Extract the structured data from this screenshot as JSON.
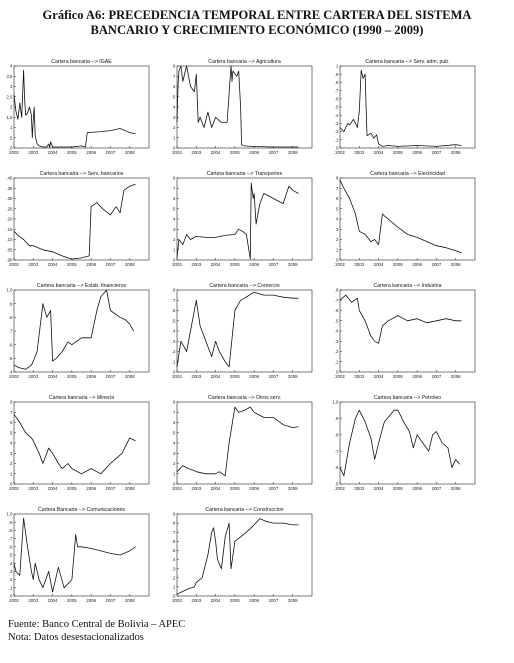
{
  "title": {
    "line1": "Gráfico A6: PRECEDENCIA TEMPORAL ENTRE  CARTERA DEL SISTEMA",
    "line2": "BANCARIO Y CRECIMIENTO ECONÓMICO (1990 – 2009)"
  },
  "footer": {
    "source": "Fuente: Banco Central de Bolivia – APEC",
    "note": "Nota: Datos desestacionalizados"
  },
  "chart_data": [
    {
      "type": "line",
      "title": "Cartera bancaria --> IGAE",
      "xlim": [
        2002,
        2009
      ],
      "x_ticks": [
        "2002",
        "2003",
        "2004",
        "2005",
        "2006",
        "2007",
        "2008"
      ],
      "ylim": [
        0,
        4
      ],
      "y_ticks": [
        ".0",
        ".5",
        "1",
        "1.5",
        "2",
        "2.5",
        "3",
        "3.5",
        "4"
      ],
      "x": [
        2002.0,
        2002.1,
        2002.2,
        2002.3,
        2002.4,
        2002.5,
        2002.55,
        2002.6,
        2002.7,
        2002.8,
        2002.9,
        2002.95,
        2003.0,
        2003.05,
        2003.1,
        2003.2,
        2003.3,
        2003.5,
        2003.7,
        2003.8,
        2003.85,
        2003.9,
        2004.0,
        2004.5,
        2005.0,
        2005.5,
        2005.7,
        2005.8,
        2006.5,
        2007.0,
        2007.5,
        2008.0,
        2008.3
      ],
      "y": [
        2.6,
        1.8,
        1.4,
        2.2,
        1.5,
        3.8,
        2.4,
        1.6,
        1.7,
        2.0,
        1.6,
        0.5,
        1.4,
        2.0,
        0.6,
        0.2,
        0.1,
        0.05,
        0.05,
        0.2,
        0.02,
        0.3,
        0.05,
        0.05,
        0.05,
        0.1,
        0.05,
        0.75,
        0.8,
        0.85,
        0.95,
        0.75,
        0.7
      ]
    },
    {
      "type": "line",
      "title": "Cartera bancaria --> Agricultura",
      "xlim": [
        2002,
        2009
      ],
      "x_ticks": [
        "2002",
        "2003",
        "2004",
        "2005",
        "2006",
        "2007",
        "2008"
      ],
      "ylim": [
        0,
        8
      ],
      "y_ticks": [
        "0",
        "1",
        "2",
        "3",
        "4",
        "5",
        "6",
        "7",
        "8"
      ],
      "x": [
        2002.0,
        2002.05,
        2002.1,
        2002.2,
        2002.3,
        2002.5,
        2002.7,
        2002.9,
        2003.0,
        2003.1,
        2003.2,
        2003.4,
        2003.6,
        2003.8,
        2004.0,
        2004.3,
        2004.6,
        2004.8,
        2004.85,
        2004.9,
        2005.1,
        2005.2,
        2005.3,
        2005.35,
        2005.5,
        2006.0,
        2007.0,
        2008.0,
        2008.3
      ],
      "y": [
        2.5,
        6.0,
        7.5,
        8.0,
        6.5,
        8.0,
        6.0,
        5.5,
        7.2,
        2.5,
        3.0,
        2.0,
        3.5,
        2.0,
        3.0,
        2.5,
        2.5,
        8.0,
        6.5,
        7.5,
        7.0,
        7.5,
        4.0,
        0.3,
        0.2,
        0.15,
        0.1,
        0.1,
        0.1
      ]
    },
    {
      "type": "line",
      "title": "Cartera bancaria --> Serv. adm. pub.",
      "xlim": [
        2002,
        2009
      ],
      "x_ticks": [
        "2002",
        "2003",
        "2004",
        "2005",
        "2006",
        "2007",
        "2008"
      ],
      "ylim": [
        0,
        1
      ],
      "y_ticks": [
        "0",
        ".1",
        ".2",
        ".3",
        ".4",
        ".5",
        ".6",
        ".7",
        ".8",
        ".9",
        "1"
      ],
      "x": [
        2002.0,
        2002.2,
        2002.4,
        2002.5,
        2002.7,
        2002.9,
        2003.0,
        2003.1,
        2003.2,
        2003.3,
        2003.4,
        2003.6,
        2003.75,
        2003.9,
        2004.0,
        2004.2,
        2004.5,
        2005.0,
        2006.0,
        2007.0,
        2008.0,
        2008.3
      ],
      "y": [
        0.25,
        0.2,
        0.3,
        0.28,
        0.35,
        0.25,
        0.45,
        0.95,
        0.85,
        0.9,
        0.15,
        0.18,
        0.12,
        0.16,
        0.05,
        0.02,
        0.03,
        0.02,
        0.03,
        0.02,
        0.04,
        0.03
      ]
    },
    {
      "type": "line",
      "title": "Cartera bancaria --> Serv. bancarios",
      "xlim": [
        2002,
        2009
      ],
      "x_ticks": [
        "2002",
        "2003",
        "2004",
        "2005",
        "2006",
        "2007",
        "2008"
      ],
      "ylim": [
        0,
        0.4
      ],
      "y_ticks": [
        ".00",
        ".05",
        ".10",
        ".15",
        ".20",
        ".25",
        ".30",
        ".35",
        ".40"
      ],
      "x": [
        2002.0,
        2002.2,
        2002.5,
        2002.8,
        2003.0,
        2003.5,
        2004.0,
        2004.5,
        2004.8,
        2005.0,
        2005.5,
        2005.9,
        2006.0,
        2006.3,
        2006.6,
        2007.0,
        2007.3,
        2007.5,
        2007.7,
        2008.0,
        2008.3
      ],
      "y": [
        0.14,
        0.12,
        0.1,
        0.07,
        0.07,
        0.05,
        0.04,
        0.02,
        0.01,
        0.005,
        0.01,
        0.02,
        0.26,
        0.28,
        0.25,
        0.22,
        0.26,
        0.23,
        0.34,
        0.36,
        0.37
      ]
    },
    {
      "type": "line",
      "title": "Cartera bancaria --> Transportes",
      "xlim": [
        2002,
        2009
      ],
      "x_ticks": [
        "2002",
        "2003",
        "2004",
        "2005",
        "2006",
        "2007",
        "2008"
      ],
      "ylim": [
        0,
        8
      ],
      "y_ticks": [
        "0",
        "1",
        "2",
        "3",
        "4",
        "5",
        "6",
        "7",
        "8"
      ],
      "x": [
        2002.0,
        2002.1,
        2002.3,
        2002.5,
        2002.7,
        2003.0,
        2003.5,
        2004.0,
        2004.5,
        2005.0,
        2005.2,
        2005.4,
        2005.6,
        2005.8,
        2005.85,
        2005.95,
        2006.0,
        2006.1,
        2006.3,
        2006.5,
        2007.0,
        2007.5,
        2007.8,
        2008.0,
        2008.3
      ],
      "y": [
        0.2,
        2.0,
        1.5,
        2.5,
        2.0,
        2.3,
        2.2,
        2.2,
        2.4,
        2.5,
        3.0,
        2.8,
        2.5,
        0.1,
        7.5,
        6.0,
        6.5,
        3.5,
        5.5,
        6.5,
        6.0,
        5.5,
        7.2,
        6.8,
        6.5
      ]
    },
    {
      "type": "line",
      "title": "Cartera bancaria --> Electricidad",
      "xlim": [
        2002,
        2009
      ],
      "x_ticks": [
        "2002",
        "2003",
        "2004",
        "2005",
        "2006",
        "2007",
        "2008"
      ],
      "ylim": [
        0,
        8
      ],
      "y_ticks": [
        "0",
        "1",
        "2",
        "3",
        "4",
        "5",
        "6",
        "7",
        "8"
      ],
      "x": [
        2002.0,
        2002.2,
        2002.5,
        2002.8,
        2003.0,
        2003.3,
        2003.6,
        2003.8,
        2004.0,
        2004.2,
        2004.3,
        2004.5,
        2004.8,
        2005.0,
        2005.5,
        2006.0,
        2006.5,
        2007.0,
        2007.5,
        2008.0,
        2008.3
      ],
      "y": [
        7.8,
        7.0,
        6.0,
        4.5,
        2.8,
        2.5,
        1.8,
        2.0,
        1.5,
        4.5,
        4.3,
        4.0,
        3.5,
        3.2,
        2.5,
        2.2,
        1.8,
        1.4,
        1.2,
        0.9,
        0.7
      ]
    },
    {
      "type": "line",
      "title": "Cartera bancaria --> Estab. financieros",
      "xlim": [
        2002,
        2009
      ],
      "x_ticks": [
        "2002",
        "2003",
        "2004",
        "2005",
        "2006",
        "2007",
        "2008"
      ],
      "ylim": [
        0.4,
        1.0
      ],
      "y_ticks": [
        ".4",
        ".5",
        ".6",
        ".7",
        ".8",
        ".9",
        "1.0"
      ],
      "x": [
        2002.0,
        2002.3,
        2002.6,
        2002.9,
        2003.0,
        2003.2,
        2003.5,
        2003.7,
        2003.9,
        2004.0,
        2004.2,
        2004.5,
        2004.8,
        2005.0,
        2005.5,
        2006.0,
        2006.3,
        2006.5,
        2006.8,
        2007.0,
        2007.5,
        2007.8,
        2008.0,
        2008.2
      ],
      "y": [
        0.45,
        0.43,
        0.42,
        0.45,
        0.48,
        0.55,
        0.9,
        0.8,
        0.85,
        0.48,
        0.5,
        0.55,
        0.62,
        0.6,
        0.65,
        0.65,
        0.85,
        0.95,
        1.0,
        0.85,
        0.8,
        0.78,
        0.75,
        0.7
      ]
    },
    {
      "type": "line",
      "title": "Cartera bancaria --> Comercio",
      "xlim": [
        2002,
        2009
      ],
      "x_ticks": [
        "2002",
        "2003",
        "2004",
        "2005",
        "2006",
        "2007",
        "2008"
      ],
      "ylim": [
        0,
        0.8
      ],
      "y_ticks": [
        "0",
        ".1",
        ".2",
        ".3",
        ".4",
        ".5",
        ".6",
        ".7",
        ".8"
      ],
      "x": [
        2002.0,
        2002.2,
        2002.5,
        2002.7,
        2003.0,
        2003.2,
        2003.5,
        2003.8,
        2004.0,
        2004.2,
        2004.5,
        2004.7,
        2005.0,
        2005.3,
        2005.5,
        2006.0,
        2006.5,
        2007.0,
        2007.5,
        2008.0,
        2008.3
      ],
      "y": [
        0.05,
        0.3,
        0.2,
        0.4,
        0.7,
        0.45,
        0.3,
        0.15,
        0.3,
        0.2,
        0.1,
        0.05,
        0.6,
        0.7,
        0.72,
        0.78,
        0.75,
        0.75,
        0.73,
        0.72,
        0.72
      ]
    },
    {
      "type": "line",
      "title": "Cartera bancaria --> Industria",
      "xlim": [
        2002,
        2009
      ],
      "x_ticks": [
        "2002",
        "2003",
        "2004",
        "2005",
        "2006",
        "2007",
        "2008"
      ],
      "ylim": [
        0,
        0.8
      ],
      "y_ticks": [
        "0",
        ".1",
        ".2",
        ".3",
        ".4",
        ".5",
        ".6",
        ".7",
        ".8"
      ],
      "x": [
        2002.0,
        2002.3,
        2002.6,
        2002.9,
        2003.0,
        2003.3,
        2003.6,
        2003.8,
        2004.0,
        2004.2,
        2004.5,
        2005.0,
        2005.5,
        2006.0,
        2006.5,
        2007.0,
        2007.5,
        2008.0,
        2008.3
      ],
      "y": [
        0.7,
        0.75,
        0.68,
        0.72,
        0.6,
        0.5,
        0.35,
        0.3,
        0.28,
        0.45,
        0.5,
        0.55,
        0.5,
        0.52,
        0.48,
        0.5,
        0.52,
        0.5,
        0.5
      ]
    },
    {
      "type": "line",
      "title": "Cartera bancaria --> Minería",
      "xlim": [
        2002,
        2009
      ],
      "x_ticks": [
        "2002",
        "2003",
        "2004",
        "2005",
        "2006",
        "2007",
        "2008"
      ],
      "ylim": [
        0,
        8
      ],
      "y_ticks": [
        "0",
        "1",
        "2",
        "3",
        "4",
        "5",
        "6",
        "7",
        "8"
      ],
      "x": [
        2002.0,
        2002.3,
        2002.6,
        2002.9,
        2003.0,
        2003.3,
        2003.5,
        2003.8,
        2004.0,
        2004.3,
        2004.5,
        2004.8,
        2005.0,
        2005.5,
        2006.0,
        2006.5,
        2007.0,
        2007.3,
        2007.6,
        2008.0,
        2008.3
      ],
      "y": [
        6.8,
        6.0,
        5.0,
        4.5,
        4.2,
        3.0,
        2.0,
        3.5,
        3.0,
        2.0,
        1.5,
        2.0,
        1.5,
        1.0,
        1.5,
        1.0,
        2.0,
        2.5,
        3.0,
        4.5,
        4.2
      ]
    },
    {
      "type": "line",
      "title": "Cartera bancaria --> Otros serv.",
      "xlim": [
        2002,
        2009
      ],
      "x_ticks": [
        "2002",
        "2003",
        "2004",
        "2005",
        "2006",
        "2007",
        "2008"
      ],
      "ylim": [
        0,
        8
      ],
      "y_ticks": [
        "0",
        "1",
        "2",
        "3",
        "4",
        "5",
        "6",
        "7",
        "8"
      ],
      "x": [
        2002.0,
        2002.3,
        2002.6,
        2002.9,
        2003.0,
        2003.5,
        2004.0,
        2004.2,
        2004.5,
        2004.7,
        2005.0,
        2005.2,
        2005.5,
        2005.8,
        2006.0,
        2006.5,
        2007.0,
        2007.5,
        2008.0,
        2008.3
      ],
      "y": [
        1.2,
        1.8,
        1.5,
        1.3,
        1.2,
        1.0,
        1.0,
        1.2,
        0.8,
        4.0,
        7.5,
        7.0,
        7.2,
        7.5,
        7.0,
        6.5,
        6.5,
        5.8,
        5.5,
        5.6
      ]
    },
    {
      "type": "line",
      "title": "Cartera bancaria --> Petroleo",
      "xlim": [
        2002,
        2009
      ],
      "x_ticks": [
        "2002",
        "2003",
        "2004",
        "2005",
        "2006",
        "2007",
        "2008"
      ],
      "ylim": [
        0.5,
        1.0
      ],
      "y_ticks": [
        ".5",
        ".6",
        ".7",
        ".8",
        ".9",
        "1.0"
      ],
      "x": [
        2002.0,
        2002.2,
        2002.5,
        2002.8,
        2003.0,
        2003.3,
        2003.6,
        2003.8,
        2004.0,
        2004.3,
        2004.6,
        2004.8,
        2005.0,
        2005.3,
        2005.6,
        2005.8,
        2006.0,
        2006.3,
        2006.6,
        2006.8,
        2007.0,
        2007.3,
        2007.6,
        2007.8,
        2008.0,
        2008.2
      ],
      "y": [
        0.6,
        0.55,
        0.75,
        0.9,
        0.95,
        0.88,
        0.78,
        0.65,
        0.75,
        0.88,
        0.92,
        0.95,
        0.95,
        0.88,
        0.82,
        0.72,
        0.8,
        0.75,
        0.7,
        0.8,
        0.82,
        0.75,
        0.72,
        0.6,
        0.65,
        0.62
      ]
    },
    {
      "type": "line",
      "title": "Cartera Bancaria --> Comunicaciones",
      "xlim": [
        2002,
        2009
      ],
      "x_ticks": [
        "2002",
        "2003",
        "2004",
        "2005",
        "2006",
        "2007",
        "2008"
      ],
      "ylim": [
        0,
        1.0
      ],
      "y_ticks": [
        "0",
        ".1",
        ".2",
        ".3",
        ".4",
        ".5",
        ".6",
        ".7",
        ".8",
        ".9",
        "1.0"
      ],
      "x": [
        2002.0,
        2002.1,
        2002.3,
        2002.5,
        2002.7,
        2002.9,
        2003.0,
        2003.1,
        2003.3,
        2003.5,
        2003.8,
        2004.0,
        2004.3,
        2004.6,
        2004.8,
        2005.0,
        2005.2,
        2005.3,
        2005.5,
        2006.0,
        2006.5,
        2007.0,
        2007.5,
        2008.0,
        2008.3
      ],
      "y": [
        0.4,
        0.3,
        0.25,
        0.95,
        0.6,
        0.3,
        0.2,
        0.4,
        0.2,
        0.1,
        0.3,
        0.05,
        0.35,
        0.1,
        0.15,
        0.2,
        0.75,
        0.6,
        0.6,
        0.58,
        0.55,
        0.52,
        0.5,
        0.55,
        0.6
      ]
    },
    {
      "type": "line",
      "title": "Cartera bancaria --> Construccion",
      "xlim": [
        2002,
        2009
      ],
      "x_ticks": [
        "2002",
        "2003",
        "2004",
        "2005",
        "2006",
        "2007",
        "2008"
      ],
      "ylim": [
        0,
        0.9
      ],
      "y_ticks": [
        ".0",
        ".1",
        ".2",
        ".3",
        ".4",
        ".5",
        ".6",
        ".7",
        ".8",
        ".9"
      ],
      "x": [
        2002.0,
        2002.3,
        2002.6,
        2002.9,
        2003.0,
        2003.3,
        2003.6,
        2003.8,
        2003.9,
        2004.0,
        2004.1,
        2004.3,
        2004.5,
        2004.7,
        2004.8,
        2005.0,
        2005.3,
        2005.6,
        2006.0,
        2006.3,
        2006.6,
        2007.0,
        2007.5,
        2008.0,
        2008.3
      ],
      "y": [
        0.02,
        0.05,
        0.08,
        0.1,
        0.15,
        0.2,
        0.45,
        0.7,
        0.75,
        0.6,
        0.4,
        0.3,
        0.65,
        0.8,
        0.3,
        0.6,
        0.65,
        0.7,
        0.78,
        0.85,
        0.82,
        0.8,
        0.8,
        0.78,
        0.78
      ]
    }
  ]
}
